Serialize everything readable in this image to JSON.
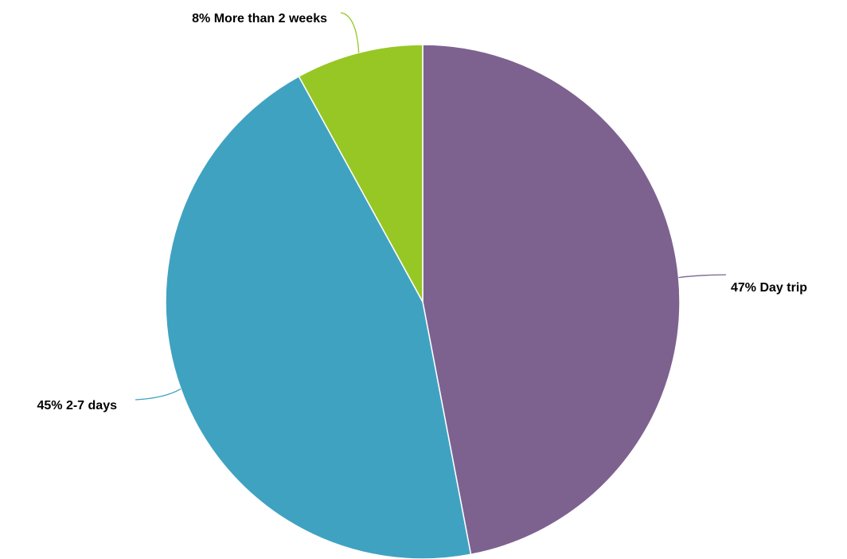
{
  "chart_data": {
    "type": "pie",
    "title": "",
    "slices": [
      {
        "label": "Day trip",
        "value": 47,
        "percent_label": "47%",
        "color": "#7d6290"
      },
      {
        "label": "2-7 days",
        "value": 45,
        "percent_label": "45%",
        "color": "#40a2c1"
      },
      {
        "label": "More than 2 weeks",
        "value": 8,
        "percent_label": "8%",
        "color": "#97c725"
      }
    ],
    "start_angle": "12 o'clock",
    "direction": "clockwise",
    "legend": "none",
    "labels": "outside with leader lines"
  }
}
